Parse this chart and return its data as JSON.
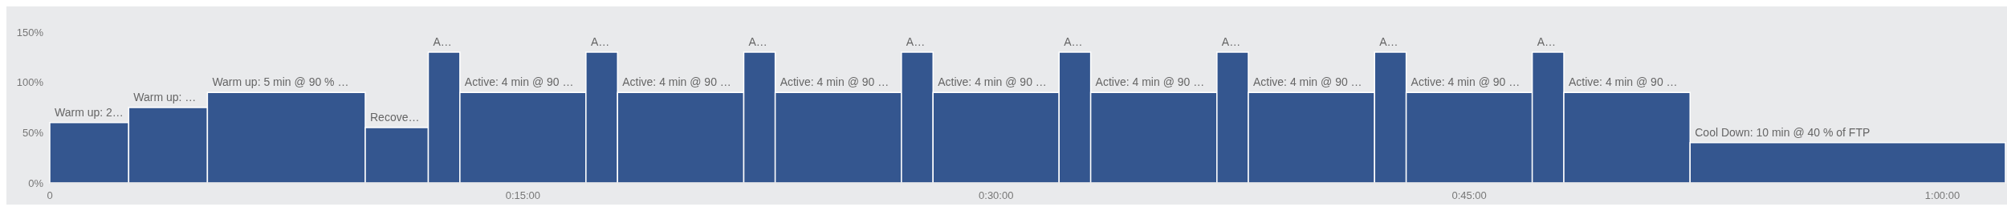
{
  "chart_data": {
    "type": "histogram",
    "bins": [
      0,
      0.0417,
      0.0833,
      0.1667,
      0.2,
      0.2167,
      0.2833,
      0.3,
      0.3667,
      0.3833,
      0.45,
      0.4667,
      0.5333,
      0.55,
      0.6167,
      0.6333,
      0.7,
      0.7167,
      0.7833,
      0.8,
      0.8667,
      1.0333
    ],
    "values": [
      60,
      75,
      90,
      55,
      130,
      90,
      130,
      90,
      130,
      90,
      130,
      90,
      130,
      90,
      130,
      90,
      130,
      90,
      130,
      90,
      40
    ],
    "value_labels": [
      "Warm up: 2…",
      "Warm up: …",
      "Warm up: 5 min @ 90 % …",
      "Recove…",
      "A…",
      "Active: 4 min @ 90 …",
      "A…",
      "Active: 4 min @ 90 …",
      "A…",
      "Active: 4 min @ 90 …",
      "A…",
      "Active: 4 min @ 90 …",
      "A…",
      "Active: 4 min @ 90 …",
      "A…",
      "Active: 4 min @ 90 …",
      "A…",
      "Active: 4 min @ 90 …",
      "A…",
      "Active: 4 min @ 90 …",
      "Cool Down: 10 min @ 40 % of FTP"
    ],
    "color": "#34568f",
    "xlim": [
      0,
      1.0333
    ],
    "xticks": [
      0,
      {
        "value": 0.25,
        "label": "0:15:00"
      },
      {
        "value": 0.5,
        "label": "0:30:00"
      },
      {
        "value": 0.75,
        "label": "0:45:00"
      },
      {
        "value": 1,
        "label": "1:00:00"
      }
    ],
    "ylim": [
      0,
      150
    ],
    "yticks": [
      {
        "value": 0,
        "label": "0%"
      },
      {
        "value": 50,
        "label": "50%"
      },
      {
        "value": 100,
        "label": "100%"
      },
      {
        "value": 150,
        "label": "150%"
      }
    ],
    "grid": false
  }
}
